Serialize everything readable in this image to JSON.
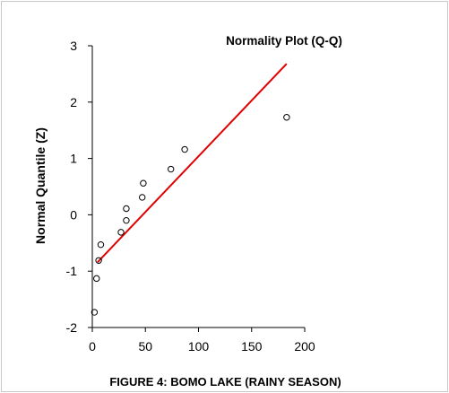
{
  "chart_data": {
    "type": "scatter",
    "title": "Normality Plot (Q-Q)",
    "xlabel": "",
    "ylabel": "Normal Quantile (Z)",
    "caption": "FIGURE 4: BOMO LAKE (RAINY SEASON)",
    "xlim": [
      0,
      200
    ],
    "ylim": [
      -2,
      3
    ],
    "x_ticks": [
      0,
      50,
      100,
      150,
      200
    ],
    "y_ticks": [
      -2,
      -1,
      0,
      1,
      2,
      3
    ],
    "grid": false,
    "points": [
      {
        "x": 2,
        "y": -1.73
      },
      {
        "x": 4,
        "y": -1.13
      },
      {
        "x": 6,
        "y": -0.81
      },
      {
        "x": 8,
        "y": -0.53
      },
      {
        "x": 27,
        "y": -0.31
      },
      {
        "x": 32,
        "y": -0.1
      },
      {
        "x": 32,
        "y": 0.11
      },
      {
        "x": 47,
        "y": 0.31
      },
      {
        "x": 48,
        "y": 0.56
      },
      {
        "x": 74,
        "y": 0.81
      },
      {
        "x": 87,
        "y": 1.16
      },
      {
        "x": 183,
        "y": 1.73
      }
    ],
    "fit_line": {
      "x": [
        5,
        183
      ],
      "y": [
        -0.84,
        2.68
      ],
      "color": "#e00000"
    },
    "marker_color": "#000000"
  }
}
